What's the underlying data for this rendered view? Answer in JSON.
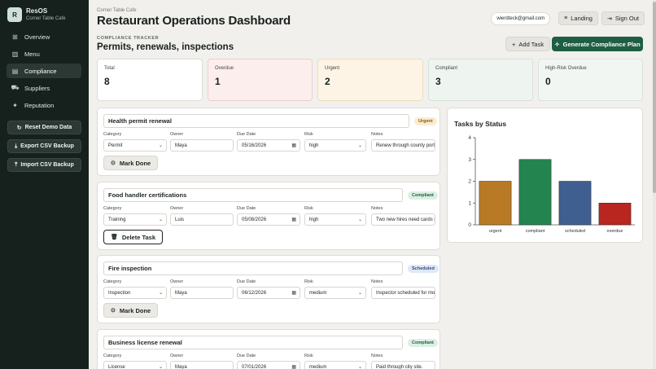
{
  "brand": {
    "logo": "R",
    "name": "ResOS",
    "subtitle": "Corner Table Cafe"
  },
  "nav": [
    {
      "label": "Overview",
      "icon": "grid-icon",
      "glyph": "⊞"
    },
    {
      "label": "Menu",
      "icon": "chart-icon",
      "glyph": "▥"
    },
    {
      "label": "Compliance",
      "icon": "clipboard-icon",
      "glyph": "▤",
      "active": true
    },
    {
      "label": "Suppliers",
      "icon": "truck-icon",
      "glyph": "⛟"
    },
    {
      "label": "Reputation",
      "icon": "sparkle-icon",
      "glyph": "✦"
    }
  ],
  "side_actions": [
    {
      "label": "Reset Demo Data",
      "glyph": "↻"
    },
    {
      "label": "Export CSV Backup",
      "glyph": "⤓"
    },
    {
      "label": "Import CSV Backup",
      "glyph": "⤒"
    }
  ],
  "header": {
    "breadcrumb": "Corner Table Cafe",
    "title": "Restaurant Operations Dashboard",
    "email": "wierdteck@gmail.com",
    "landing_label": "Landing",
    "signout_label": "Sign Out"
  },
  "section": {
    "kicker": "COMPLIANCE TRACKER",
    "title": "Permits, renewals, inspections",
    "add_task_label": "Add Task",
    "generate_label": "Generate Compliance Plan"
  },
  "stats": [
    {
      "label": "Total",
      "value": "8"
    },
    {
      "label": "Overdue",
      "value": "1"
    },
    {
      "label": "Urgent",
      "value": "2"
    },
    {
      "label": "Compliant",
      "value": "3"
    },
    {
      "label": "High-Risk Overdue",
      "value": "0"
    }
  ],
  "field_labels": {
    "category": "Category",
    "owner": "Owner",
    "due": "Due Date",
    "risk": "Risk",
    "notes": "Notes"
  },
  "tasks": [
    {
      "title": "Health permit renewal",
      "status": "Urgent",
      "category": "Permit",
      "owner": "Maya",
      "due": "05/16/2026",
      "risk": "high",
      "notes": "Renew through county port",
      "action": "Mark Done"
    },
    {
      "title": "Food handler certifications",
      "status": "Compliant",
      "category": "Training",
      "owner": "Luis",
      "due": "05/08/2026",
      "risk": "high",
      "notes": "Two new hires need cards u",
      "action": "Delete Task"
    },
    {
      "title": "Fire inspection",
      "status": "Scheduled",
      "category": "Inspection",
      "owner": "Maya",
      "due": "06/12/2026",
      "risk": "medium",
      "notes": "Inspector scheduled for mo",
      "action": "Mark Done"
    },
    {
      "title": "Business license renewal",
      "status": "Compliant",
      "category": "License",
      "owner": "Maya",
      "due": "07/01/2026",
      "risk": "medium",
      "notes": "Paid through city site."
    }
  ],
  "chart_data": {
    "type": "bar",
    "title": "Tasks by Status",
    "categories": [
      "urgent",
      "compliant",
      "scheduled",
      "overdue"
    ],
    "values": [
      2,
      3,
      2,
      1
    ],
    "colors": [
      "#b87a25",
      "#24844f",
      "#3f5f91",
      "#b8261f"
    ],
    "ylim": [
      0,
      4
    ],
    "yticks": [
      0,
      1,
      2,
      3,
      4
    ],
    "grid": false
  }
}
